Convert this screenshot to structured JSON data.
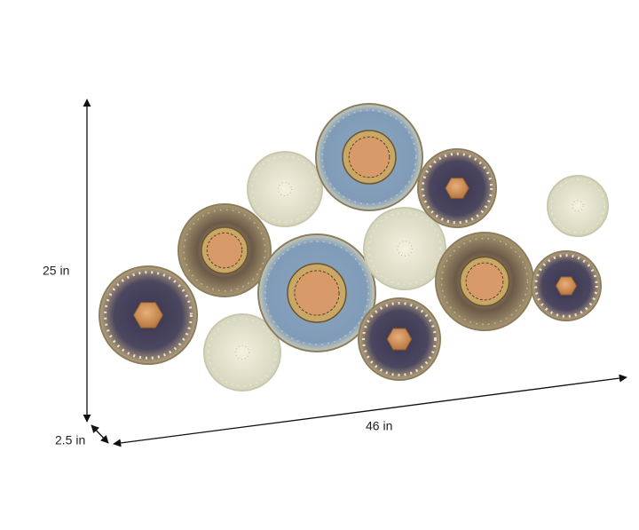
{
  "dimensions": {
    "height": "25 in",
    "width": "46 in",
    "depth": "2.5 in"
  }
}
